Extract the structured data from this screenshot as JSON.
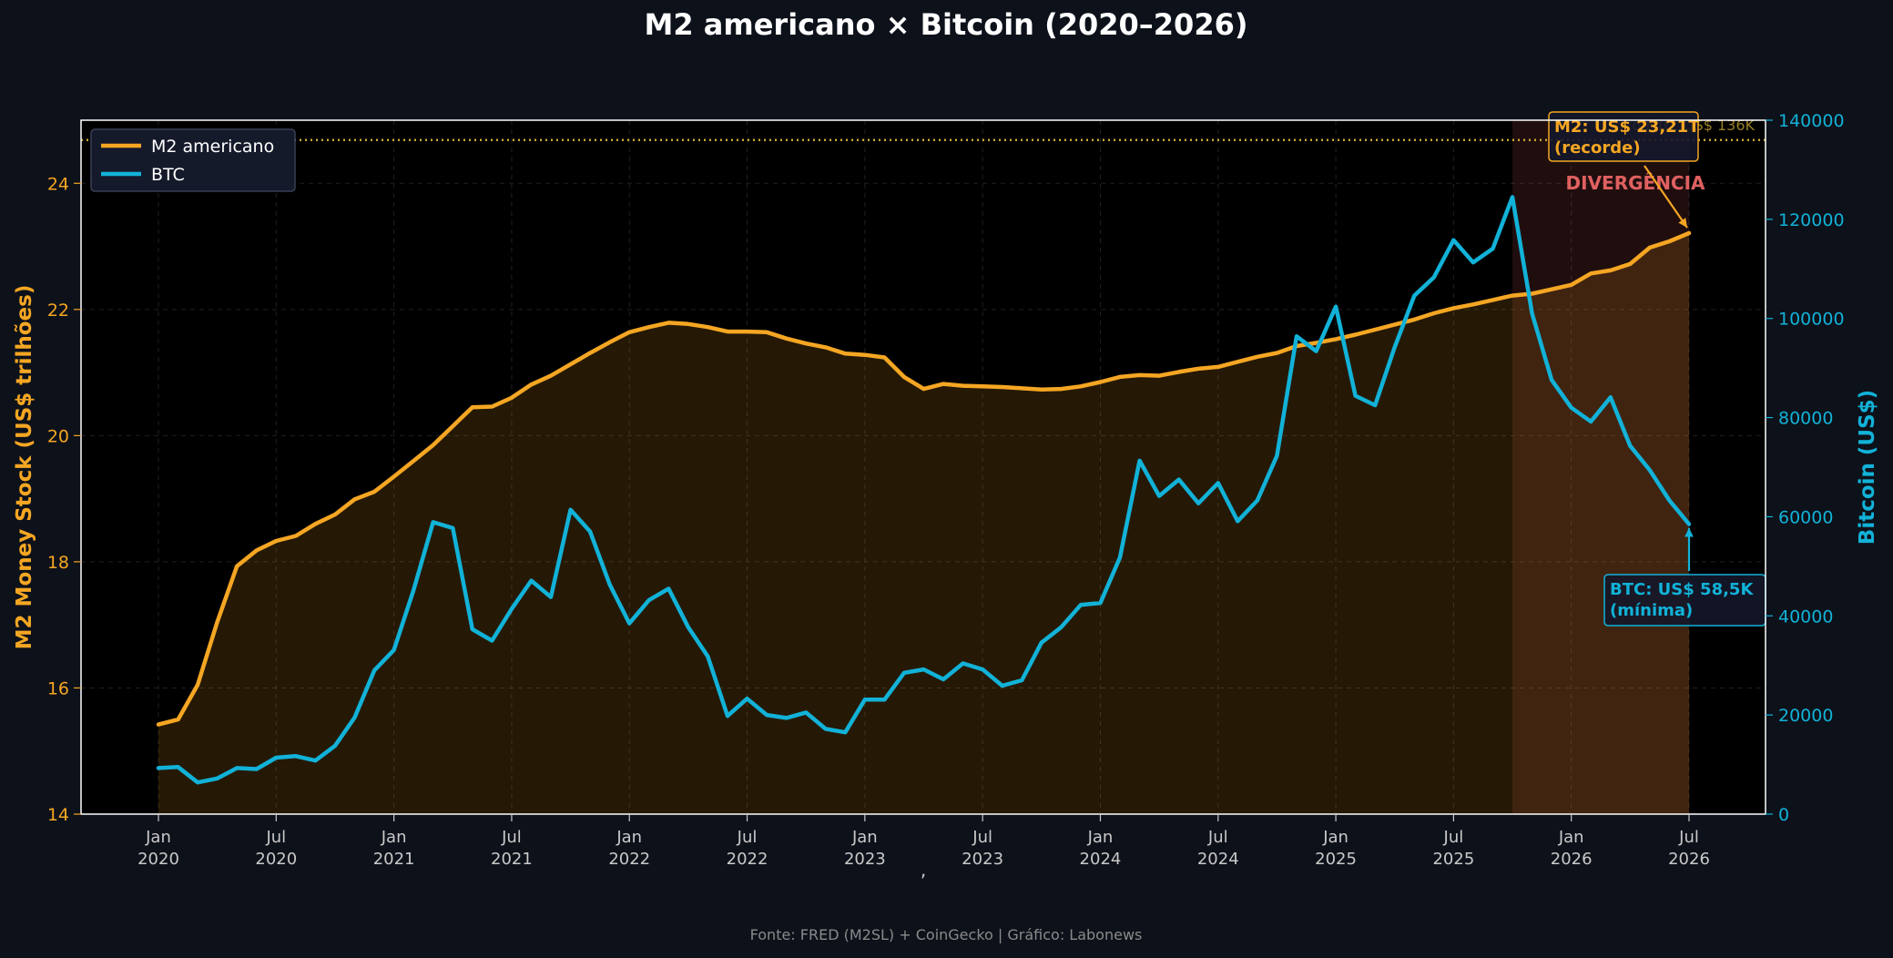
{
  "chart_data": {
    "type": "line",
    "title": "M2 americano × Bitcoin (2020–2026)",
    "xlabel": ",",
    "ylabel_left": "M2 Money Stock (US$ trilhões)",
    "ylabel_right": "Bitcoin (US$)",
    "ylim_left": [
      14,
      25
    ],
    "ylim_right": [
      0,
      140000
    ],
    "yticks_left": [
      "14",
      "16",
      "18",
      "20",
      "22",
      "24"
    ],
    "yticks_right": [
      "0",
      "20000",
      "40000",
      "60000",
      "80000",
      "100000",
      "120000",
      "140000"
    ],
    "x_start": "2020-01",
    "x_ticks": [
      {
        "month": "2020-01",
        "line1": "Jan",
        "line2": "2020"
      },
      {
        "month": "2020-07",
        "line1": "Jul",
        "line2": "2020"
      },
      {
        "month": "2021-01",
        "line1": "Jan",
        "line2": "2021"
      },
      {
        "month": "2021-07",
        "line1": "Jul",
        "line2": "2021"
      },
      {
        "month": "2022-01",
        "line1": "Jan",
        "line2": "2022"
      },
      {
        "month": "2022-07",
        "line1": "Jul",
        "line2": "2022"
      },
      {
        "month": "2023-01",
        "line1": "Jan",
        "line2": "2023"
      },
      {
        "month": "2023-07",
        "line1": "Jul",
        "line2": "2023"
      },
      {
        "month": "2024-01",
        "line1": "Jan",
        "line2": "2024"
      },
      {
        "month": "2024-07",
        "line1": "Jul",
        "line2": "2024"
      },
      {
        "month": "2025-01",
        "line1": "Jan",
        "line2": "2025"
      },
      {
        "month": "2025-07",
        "line1": "Jul",
        "line2": "2025"
      },
      {
        "month": "2026-01",
        "line1": "Jan",
        "line2": "2026"
      },
      {
        "month": "2026-07",
        "line1": "Jul",
        "line2": "2026"
      }
    ],
    "legend_position": "top-left",
    "grid": true,
    "series": [
      {
        "name": "M2 americano",
        "axis": "left",
        "color": "#f5a623",
        "values": [
          15.42,
          15.5,
          16.05,
          17.05,
          17.93,
          18.18,
          18.33,
          18.41,
          18.6,
          18.75,
          18.99,
          19.11,
          19.35,
          19.6,
          19.85,
          20.15,
          20.45,
          20.46,
          20.6,
          20.81,
          20.95,
          21.13,
          21.31,
          21.48,
          21.64,
          21.72,
          21.79,
          21.77,
          21.72,
          21.65,
          21.65,
          21.64,
          21.54,
          21.46,
          21.4,
          21.3,
          21.28,
          21.24,
          20.93,
          20.74,
          20.82,
          20.79,
          20.78,
          20.77,
          20.75,
          20.73,
          20.74,
          20.78,
          20.85,
          20.93,
          20.96,
          20.95,
          21.01,
          21.06,
          21.09,
          21.17,
          21.25,
          21.31,
          21.42,
          21.47,
          21.53,
          21.6,
          21.68,
          21.76,
          21.84,
          21.94,
          22.02,
          22.08,
          22.15,
          22.22,
          22.25,
          22.32,
          22.39,
          22.57,
          22.62,
          22.72,
          22.98,
          23.08,
          23.21
        ]
      },
      {
        "name": "BTC",
        "axis": "right",
        "color": "#12b2d8",
        "values": [
          9300,
          9500,
          6400,
          7200,
          9300,
          9100,
          11400,
          11700,
          10800,
          13800,
          19500,
          29000,
          33100,
          45200,
          58900,
          57700,
          37300,
          35000,
          41400,
          47100,
          43800,
          61400,
          57000,
          46300,
          38500,
          43200,
          45500,
          37700,
          31800,
          19800,
          23300,
          20000,
          19400,
          20500,
          17200,
          16500,
          23100,
          23100,
          28500,
          29200,
          27200,
          30400,
          29200,
          25900,
          27000,
          34600,
          37700,
          42200,
          42600,
          51800,
          71300,
          64200,
          67500,
          62700,
          66800,
          59100,
          63300,
          72300,
          96400,
          93400,
          102400,
          84400,
          82500,
          94200,
          104600,
          108300,
          115800,
          111300,
          114100,
          124500,
          101000,
          87600,
          82000,
          79200,
          84100,
          74300,
          69400,
          63300,
          58500
        ]
      }
    ],
    "reference_line": {
      "value": 136000,
      "axis": "right",
      "label": "Pico BTC: US$ 136K",
      "color": "#c8a832"
    },
    "shaded_region": {
      "start": "2025-10",
      "end": "2026-07",
      "label": "DIVERGÊNCIA",
      "color": "#e06060"
    },
    "annotations": [
      {
        "id": "m2",
        "line1": "M2: US$ 23,21T",
        "line2": "(recorde)",
        "color": "#f5a623",
        "target_month": "2026-07",
        "target_value": 23.21,
        "axis": "left"
      },
      {
        "id": "btc",
        "line1": "BTC: US$ 58,5K",
        "line2": "(mínima)",
        "color": "#12b2d8",
        "target_month": "2026-07",
        "target_value": 58500,
        "axis": "right"
      }
    ],
    "source": "Fonte: FRED (M2SL) + CoinGecko | Gráfico: Labonews"
  },
  "colors": {
    "page_bg": "#0d111a",
    "plot_bg": "#000000",
    "m2": "#f5a623",
    "btc": "#12b2d8",
    "divergence": "#e06060",
    "tick_text": "#c9c9c9",
    "title_text": "#ffffff",
    "source_text": "#8a8a8a"
  }
}
